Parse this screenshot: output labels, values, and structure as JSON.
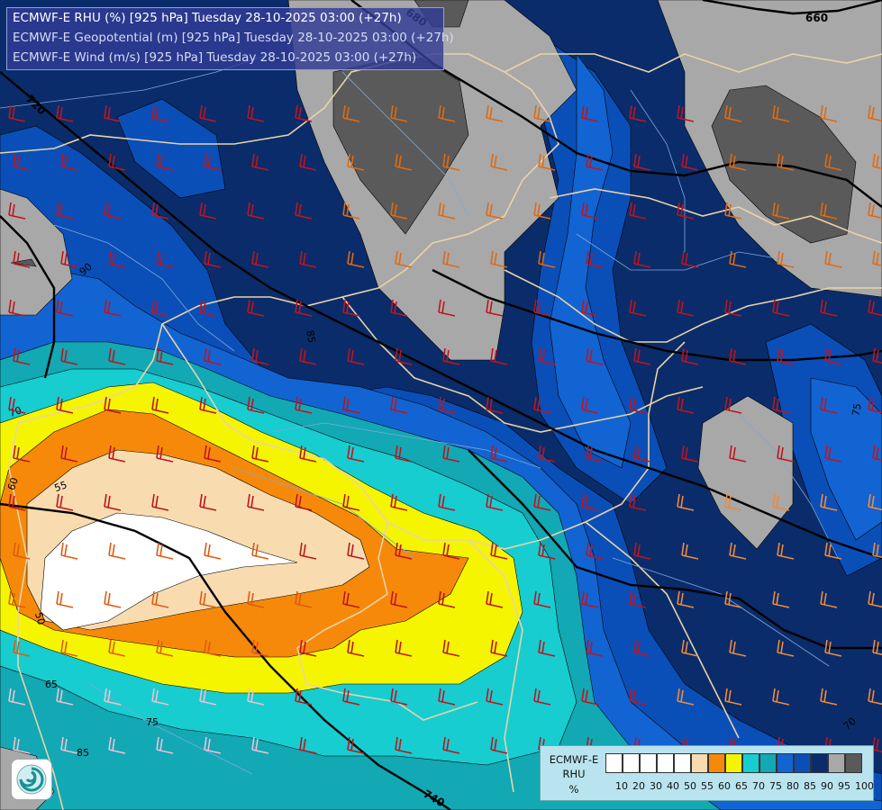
{
  "header": {
    "line1": "ECMWF-E RHU (%) [925 hPa] Tuesday 28-10-2025 03:00 (+27h)",
    "line2": "ECMWF-E Geopotential (m) [925 hPa] Tuesday 28-10-2025 03:00 (+27h)",
    "line3": "ECMWF-E Wind (m/s) [925 hPa] Tuesday 28-10-2025 03:00 (+27h)"
  },
  "legend": {
    "title1": "ECMWF-E",
    "title2": "RHU",
    "title3": "%",
    "ticks": [
      "10",
      "20",
      "30",
      "40",
      "50",
      "55",
      "60",
      "65",
      "70",
      "75",
      "80",
      "85",
      "90",
      "95",
      "100"
    ],
    "colors": [
      "#ffffff",
      "#ffffff",
      "#ffffff",
      "#ffffff",
      "#ffffff",
      "#f8dcb0",
      "#f7890a",
      "#f5f500",
      "#17cdd0",
      "#12a8b4",
      "#1264d2",
      "#0a4fb8",
      "#0a2c6a",
      "#a8a8a8",
      "#5a5a5a"
    ]
  },
  "geopotential_labels": [
    "660",
    "680",
    "720",
    "740",
    "60",
    "65",
    "70",
    "75",
    "80",
    "85",
    "90",
    "55",
    "50"
  ],
  "logo": {
    "icon": "ecmwf-swirl-logo-icon"
  },
  "colors": {
    "rh_90": "#0a2c6a",
    "rh_85": "#0a4fb8",
    "rh_80": "#1264d2",
    "rh_75": "#12a8b4",
    "rh_70": "#17cdd0",
    "rh_65": "#f5f500",
    "rh_60": "#f7890a",
    "rh_55": "#f8dcb0",
    "rh_50": "#ffffff",
    "rh_95": "#a8a8a8",
    "rh_100": "#5a5a5a",
    "border": "#e8d3a8",
    "river": "#7fa8d8",
    "isohypse": "#000000"
  }
}
